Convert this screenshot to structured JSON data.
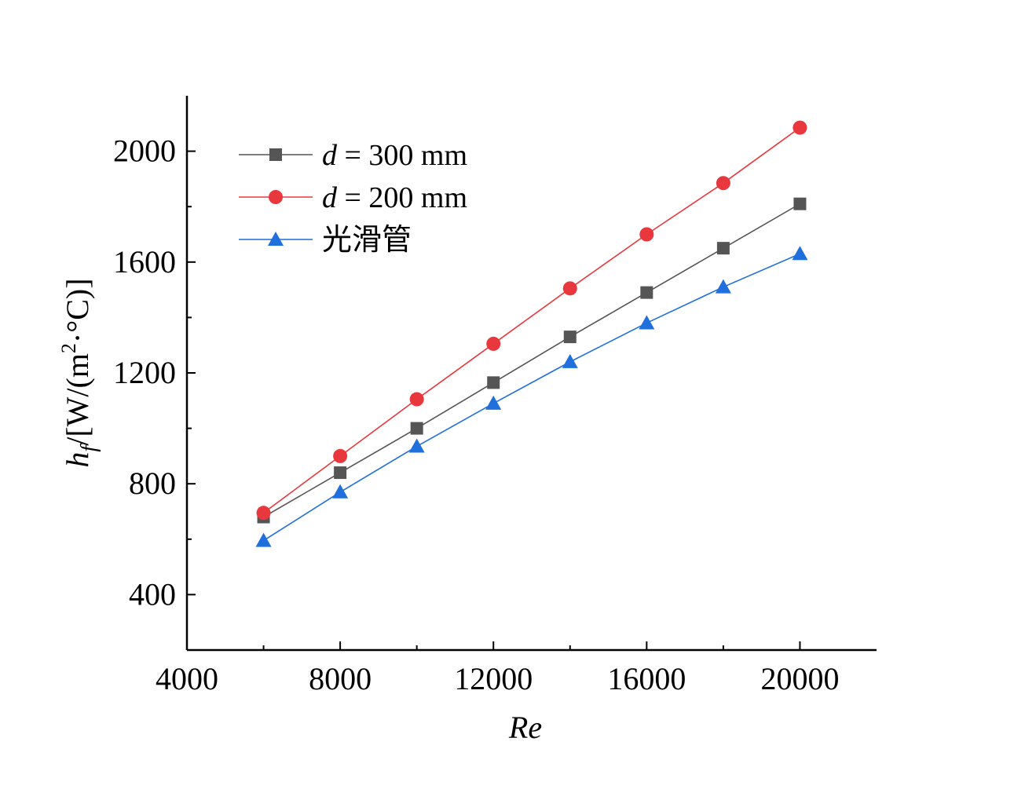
{
  "chart_data": {
    "type": "line",
    "xlabel": "Re",
    "ylabel": {
      "symbol": "h",
      "subscript": "f",
      "unit_prefix": "/[W/(m",
      "superscript": "2",
      "unit_suffix": "·°C)]"
    },
    "xlim": [
      4000,
      22000
    ],
    "ylim": [
      200,
      2200
    ],
    "x_ticks": [
      4000,
      8000,
      12000,
      16000,
      20000
    ],
    "y_ticks": [
      400,
      800,
      1200,
      1600,
      2000
    ],
    "x_tick_labels": [
      "4000",
      "8000",
      "12000",
      "16000",
      "20000"
    ],
    "y_tick_labels": [
      "400",
      "800",
      "1200",
      "1600",
      "2000"
    ],
    "x": [
      6000,
      8000,
      10000,
      12000,
      14000,
      16000,
      18000,
      20000
    ],
    "legend_position": "top-left",
    "grid": false,
    "series": [
      {
        "name": "d = 300 mm",
        "name_var": "d",
        "name_rest": " = 300 mm",
        "marker": "square",
        "color": "#555555",
        "values": [
          680,
          840,
          1000,
          1165,
          1330,
          1490,
          1650,
          1810
        ]
      },
      {
        "name": "d = 200 mm",
        "name_var": "d",
        "name_rest": " = 200 mm",
        "marker": "circle",
        "color": "#e8383d",
        "values": [
          695,
          900,
          1105,
          1305,
          1505,
          1700,
          1885,
          2085
        ]
      },
      {
        "name": "光滑管",
        "name_var": "",
        "name_rest": "光滑管",
        "marker": "triangle",
        "color": "#1f6fdc",
        "values": [
          595,
          770,
          935,
          1090,
          1240,
          1380,
          1510,
          1630
        ]
      }
    ]
  }
}
